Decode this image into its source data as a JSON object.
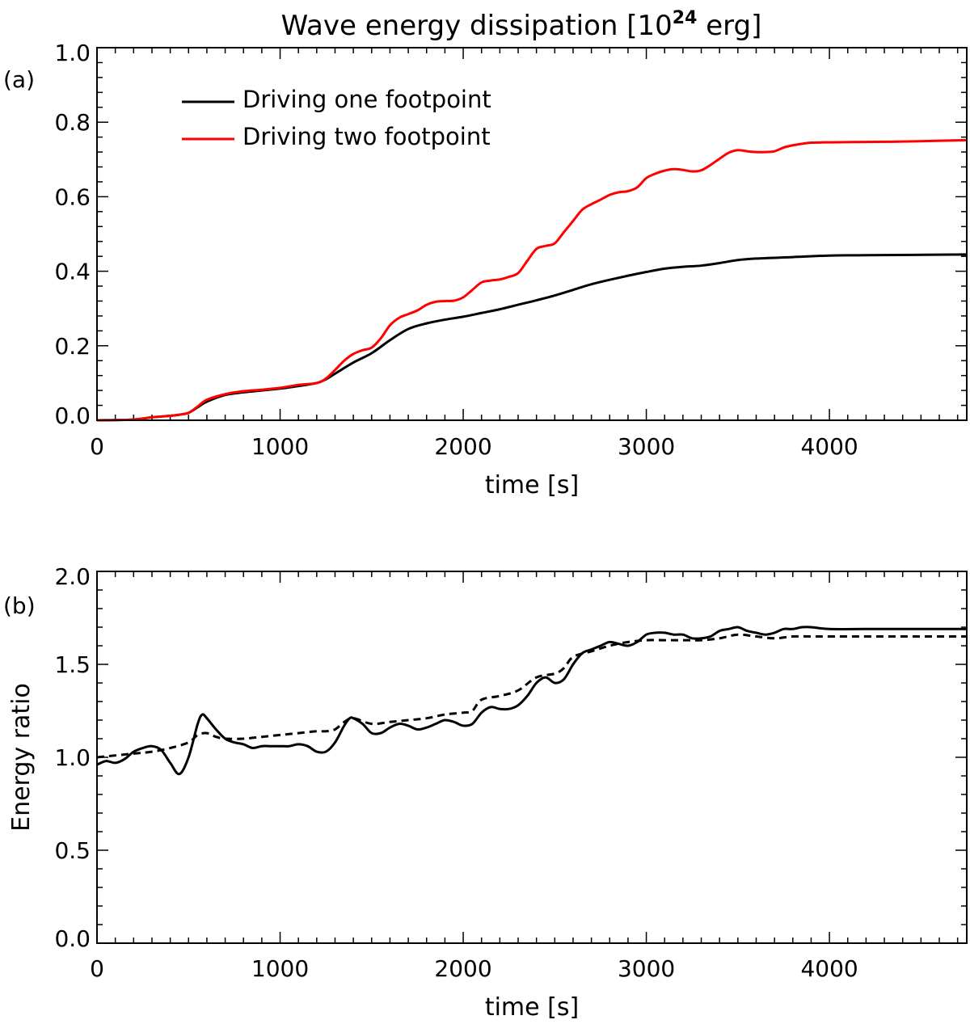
{
  "chart_data": [
    {
      "panel": "a",
      "panel_label": "(a)",
      "type": "line",
      "title": "Wave energy dissipation [10",
      "title_superscript": "24",
      "title_suffix": " erg]",
      "xlabel": "time [s]",
      "ylabel": "",
      "xlim": [
        0,
        4750
      ],
      "ylim": [
        0,
        1.0
      ],
      "x_ticks": [
        0,
        1000,
        2000,
        3000,
        4000
      ],
      "x_tick_labels": [
        "0",
        "1000",
        "2000",
        "3000",
        "4000"
      ],
      "y_ticks": [
        0.0,
        0.2,
        0.4,
        0.6,
        0.8,
        1.0
      ],
      "y_tick_labels": [
        "0.0",
        "0.2",
        "0.4",
        "0.6",
        "0.8",
        "1.0"
      ],
      "grid": false,
      "legend_position": "top-left",
      "series": [
        {
          "name": "Driving one footpoint",
          "color": "#000000",
          "style": "solid",
          "x": [
            0,
            200,
            300,
            400,
            450,
            500,
            550,
            600,
            700,
            800,
            900,
            1000,
            1100,
            1200,
            1250,
            1300,
            1400,
            1500,
            1600,
            1700,
            1800,
            1900,
            2000,
            2100,
            2200,
            2300,
            2400,
            2500,
            2600,
            2700,
            2800,
            2900,
            3000,
            3100,
            3200,
            3300,
            3400,
            3500,
            3600,
            3800,
            4000,
            4200,
            4750
          ],
          "y": [
            0.0,
            0.002,
            0.008,
            0.012,
            0.015,
            0.02,
            0.035,
            0.05,
            0.068,
            0.075,
            0.08,
            0.085,
            0.092,
            0.1,
            0.11,
            0.125,
            0.155,
            0.18,
            0.215,
            0.245,
            0.26,
            0.27,
            0.278,
            0.288,
            0.298,
            0.31,
            0.322,
            0.335,
            0.35,
            0.365,
            0.377,
            0.388,
            0.398,
            0.407,
            0.412,
            0.415,
            0.422,
            0.43,
            0.434,
            0.438,
            0.442,
            0.443,
            0.445
          ]
        },
        {
          "name": "Driving two footpoint",
          "color": "#ff0000",
          "style": "solid",
          "x": [
            0,
            200,
            300,
            400,
            450,
            500,
            550,
            600,
            700,
            800,
            900,
            1000,
            1100,
            1200,
            1250,
            1300,
            1350,
            1400,
            1450,
            1500,
            1550,
            1600,
            1650,
            1700,
            1750,
            1800,
            1850,
            1900,
            1950,
            2000,
            2050,
            2100,
            2150,
            2200,
            2250,
            2300,
            2350,
            2400,
            2450,
            2500,
            2550,
            2600,
            2650,
            2700,
            2750,
            2800,
            2850,
            2900,
            2950,
            3000,
            3050,
            3100,
            3150,
            3200,
            3250,
            3300,
            3350,
            3400,
            3450,
            3500,
            3550,
            3600,
            3650,
            3700,
            3750,
            3800,
            3850,
            3900,
            4000,
            4200,
            4400,
            4750
          ],
          "y": [
            0.0,
            0.002,
            0.008,
            0.012,
            0.015,
            0.02,
            0.037,
            0.055,
            0.07,
            0.078,
            0.082,
            0.087,
            0.095,
            0.1,
            0.112,
            0.135,
            0.16,
            0.178,
            0.188,
            0.195,
            0.22,
            0.255,
            0.275,
            0.285,
            0.295,
            0.31,
            0.318,
            0.32,
            0.321,
            0.33,
            0.35,
            0.37,
            0.375,
            0.378,
            0.385,
            0.395,
            0.428,
            0.46,
            0.468,
            0.475,
            0.505,
            0.535,
            0.565,
            0.58,
            0.592,
            0.605,
            0.612,
            0.615,
            0.625,
            0.65,
            0.662,
            0.67,
            0.674,
            0.672,
            0.668,
            0.671,
            0.685,
            0.702,
            0.718,
            0.725,
            0.722,
            0.72,
            0.72,
            0.722,
            0.732,
            0.738,
            0.742,
            0.745,
            0.746,
            0.747,
            0.748,
            0.752
          ]
        }
      ]
    },
    {
      "panel": "b",
      "panel_label": "(b)",
      "type": "line",
      "title": "",
      "xlabel": "time [s]",
      "ylabel": "Energy ratio",
      "xlim": [
        0,
        4750
      ],
      "ylim": [
        0,
        2.0
      ],
      "x_ticks": [
        0,
        1000,
        2000,
        3000,
        4000
      ],
      "x_tick_labels": [
        "0",
        "1000",
        "2000",
        "3000",
        "4000"
      ],
      "y_ticks": [
        0.0,
        0.5,
        1.0,
        1.5,
        2.0
      ],
      "y_tick_labels": [
        "0.0",
        "0.5",
        "1.0",
        "1.5",
        "2.0"
      ],
      "grid": false,
      "series": [
        {
          "color": "#000000",
          "style": "solid",
          "x": [
            0,
            50,
            100,
            150,
            200,
            250,
            300,
            350,
            400,
            450,
            500,
            550,
            575,
            600,
            650,
            700,
            750,
            800,
            850,
            900,
            950,
            1000,
            1050,
            1100,
            1150,
            1200,
            1250,
            1300,
            1350,
            1380,
            1400,
            1450,
            1500,
            1550,
            1600,
            1650,
            1700,
            1750,
            1800,
            1850,
            1900,
            1950,
            2000,
            2050,
            2100,
            2150,
            2200,
            2250,
            2300,
            2350,
            2400,
            2450,
            2500,
            2550,
            2600,
            2650,
            2700,
            2750,
            2800,
            2850,
            2900,
            2950,
            3000,
            3050,
            3100,
            3150,
            3200,
            3250,
            3300,
            3350,
            3400,
            3450,
            3500,
            3550,
            3600,
            3650,
            3700,
            3750,
            3800,
            3850,
            3900,
            4000,
            4200,
            4400,
            4750
          ],
          "y": [
            0.96,
            0.98,
            0.97,
            0.99,
            1.03,
            1.05,
            1.06,
            1.04,
            0.97,
            0.91,
            1.0,
            1.18,
            1.23,
            1.21,
            1.15,
            1.1,
            1.08,
            1.07,
            1.05,
            1.06,
            1.06,
            1.06,
            1.06,
            1.07,
            1.06,
            1.03,
            1.03,
            1.08,
            1.17,
            1.21,
            1.21,
            1.18,
            1.13,
            1.13,
            1.16,
            1.18,
            1.17,
            1.15,
            1.16,
            1.18,
            1.2,
            1.19,
            1.17,
            1.18,
            1.24,
            1.27,
            1.26,
            1.26,
            1.28,
            1.33,
            1.4,
            1.43,
            1.4,
            1.42,
            1.5,
            1.56,
            1.58,
            1.6,
            1.62,
            1.61,
            1.6,
            1.62,
            1.66,
            1.67,
            1.67,
            1.66,
            1.66,
            1.64,
            1.64,
            1.65,
            1.68,
            1.69,
            1.7,
            1.68,
            1.67,
            1.66,
            1.67,
            1.69,
            1.69,
            1.7,
            1.7,
            1.69,
            1.69,
            1.69,
            1.69
          ]
        },
        {
          "color": "#000000",
          "style": "dashed",
          "x": [
            0,
            200,
            300,
            400,
            500,
            550,
            600,
            650,
            700,
            800,
            900,
            1000,
            1100,
            1200,
            1250,
            1300,
            1350,
            1400,
            1500,
            1600,
            1700,
            1800,
            1900,
            2000,
            2050,
            2100,
            2200,
            2300,
            2400,
            2500,
            2550,
            2600,
            2700,
            2800,
            2900,
            3000,
            3100,
            3200,
            3300,
            3400,
            3500,
            3600,
            3700,
            3800,
            3900,
            4000,
            4200,
            4750
          ],
          "y": [
            1.0,
            1.02,
            1.03,
            1.05,
            1.08,
            1.12,
            1.13,
            1.11,
            1.1,
            1.1,
            1.11,
            1.12,
            1.13,
            1.14,
            1.14,
            1.15,
            1.19,
            1.21,
            1.18,
            1.19,
            1.2,
            1.21,
            1.23,
            1.24,
            1.25,
            1.31,
            1.33,
            1.36,
            1.43,
            1.45,
            1.48,
            1.54,
            1.57,
            1.6,
            1.62,
            1.63,
            1.63,
            1.63,
            1.63,
            1.64,
            1.66,
            1.65,
            1.64,
            1.65,
            1.65,
            1.65,
            1.65,
            1.65
          ]
        }
      ]
    }
  ]
}
